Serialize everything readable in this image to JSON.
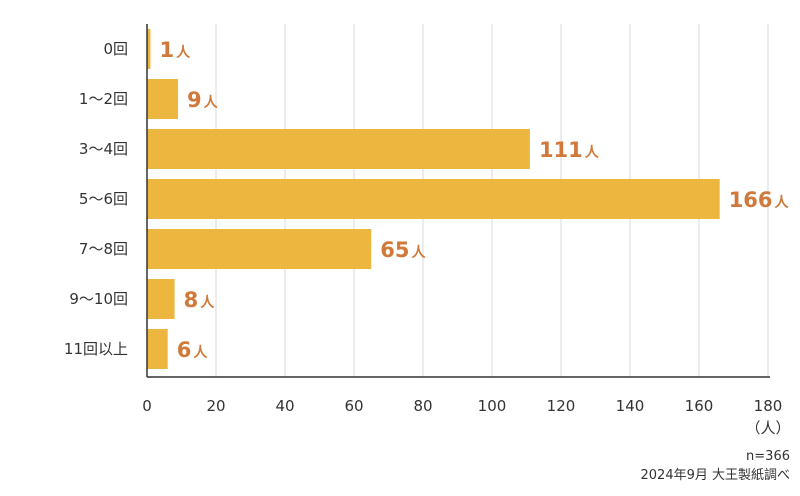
{
  "chart_data": {
    "type": "bar",
    "orientation": "horizontal",
    "categories": [
      "0回",
      "1～2回",
      "3～4回",
      "5～6回",
      "7～8回",
      "9～10回",
      "11回以上"
    ],
    "values": [
      1,
      9,
      111,
      166,
      65,
      8,
      6
    ],
    "value_unit": "人",
    "xlim": [
      0,
      180
    ],
    "xticks": [
      0,
      20,
      40,
      60,
      80,
      100,
      120,
      140,
      160,
      180
    ],
    "xunit_label": "（人）",
    "grid": true,
    "colors": {
      "bar": "#EDB73F",
      "label": "#D0793A"
    }
  },
  "footnote": {
    "sample": "n=366",
    "source": "2024年9月 大王製紙調べ"
  }
}
